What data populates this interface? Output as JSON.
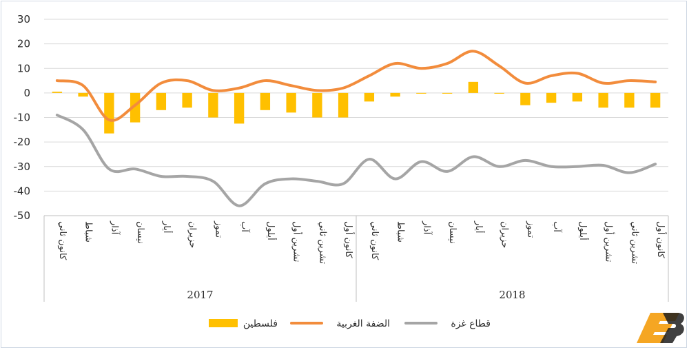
{
  "chart_data": {
    "type": "bar+line",
    "ylim": [
      -50,
      30
    ],
    "yticks": [
      30,
      20,
      10,
      0,
      -10,
      -20,
      -30,
      -40,
      -50
    ],
    "grid": true,
    "legend_position": "bottom",
    "categories": [
      "كانون ثاني",
      "شباط",
      "آذار",
      "نيسان",
      "أيار",
      "حزيران",
      "تموز",
      "آب",
      "أيلول",
      "تشرين أول",
      "تشرين ثاني",
      "كانون أول",
      "كانون ثاني",
      "شباط",
      "آذار",
      "نيسان",
      "أيار",
      "حزيران",
      "تموز",
      "آب",
      "أيلول",
      "تشرين أول",
      "تشرين ثاني",
      "كانون أول"
    ],
    "groups": [
      {
        "label": "2017",
        "count": 12
      },
      {
        "label": "2018",
        "count": 12
      }
    ],
    "series": [
      {
        "name": "فلسطين",
        "kind": "bar",
        "color": "#FFC000",
        "values": [
          0.5,
          -1.5,
          -16.5,
          -12,
          -7,
          -6,
          -10,
          -12.5,
          -7,
          -8,
          -10,
          -10,
          -3.5,
          -1.5,
          -0.3,
          -0.3,
          4.5,
          -0.3,
          -5,
          -4,
          -3.5,
          -6,
          -6,
          -6
        ]
      },
      {
        "name": "الضفة الغربية",
        "kind": "line",
        "color": "#F28C3C",
        "values": [
          5,
          3,
          -11,
          -5,
          4,
          5,
          1,
          2,
          5,
          3,
          1,
          2,
          7,
          12,
          10,
          12,
          17,
          11,
          4,
          7,
          8,
          4,
          5,
          4.5
        ]
      },
      {
        "name": "قطاع غزة",
        "kind": "line",
        "color": "#A5A5A5",
        "values": [
          -9,
          -15,
          -31,
          -31,
          -34,
          -34,
          -36,
          -46,
          -37,
          -35,
          -36,
          -37,
          -27,
          -35,
          -28,
          -32,
          -26,
          -30,
          -27.5,
          -30,
          -30,
          -29.5,
          -32.5,
          -29
        ]
      }
    ]
  },
  "logo": {
    "name": "brand-logo"
  }
}
